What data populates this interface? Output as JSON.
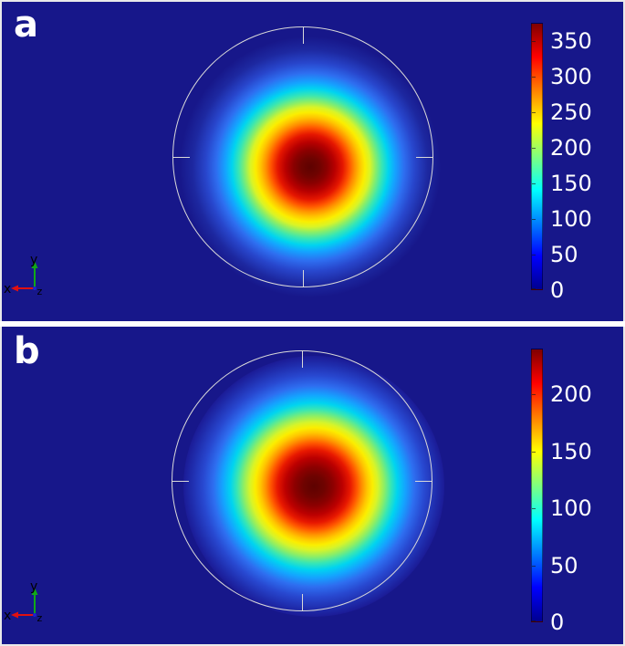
{
  "colors": {
    "background": "#17178A",
    "panel_divider": "#FFFFFF",
    "circle_outline": "#D9D9D9",
    "label_text": "#FFFFFF",
    "colorbar_tick_text": "#FFFFFF",
    "triad_x": "#E01010",
    "triad_y": "#10A818",
    "triad_z": "#2020D0",
    "triad_text": "#000000"
  },
  "triad": {
    "x_label": "x",
    "y_label": "y",
    "z_label": "z"
  },
  "jet_colormap": [
    {
      "p": 0,
      "c": "#00008F"
    },
    {
      "p": 12.5,
      "c": "#0000FF"
    },
    {
      "p": 37.5,
      "c": "#00FFFF"
    },
    {
      "p": 62.5,
      "c": "#FFFF00"
    },
    {
      "p": 87.5,
      "c": "#FF0000"
    },
    {
      "p": 100,
      "c": "#7F0000"
    }
  ],
  "panels": [
    {
      "label": "a",
      "colorbar": {
        "max": 375,
        "ticks": [
          350,
          300,
          250,
          200,
          150,
          100,
          50,
          0
        ]
      },
      "blob_stops": [
        {
          "p": 0,
          "c": "#5E0200"
        },
        {
          "p": 7,
          "c": "#6E0300"
        },
        {
          "p": 13,
          "c": "#8C0000"
        },
        {
          "p": 19,
          "c": "#B80000"
        },
        {
          "p": 25,
          "c": "#E51600"
        },
        {
          "p": 30,
          "c": "#FF5300"
        },
        {
          "p": 34,
          "c": "#FF9000"
        },
        {
          "p": 38,
          "c": "#FFC400"
        },
        {
          "p": 42,
          "c": "#FBEE00"
        },
        {
          "p": 46,
          "c": "#D8F428"
        },
        {
          "p": 50,
          "c": "#8CEE66"
        },
        {
          "p": 55,
          "c": "#38E6B4"
        },
        {
          "p": 60,
          "c": "#00D4F0"
        },
        {
          "p": 65,
          "c": "#14A4FF"
        },
        {
          "p": 72,
          "c": "#2E6EF0"
        },
        {
          "p": 80,
          "c": "#2846CC"
        },
        {
          "p": 90,
          "c": "#1D28A0"
        },
        {
          "p": 100,
          "c": "#17178A"
        }
      ]
    },
    {
      "label": "b",
      "colorbar": {
        "max": 240,
        "ticks": [
          200,
          150,
          100,
          50,
          0
        ]
      },
      "blob_stops": [
        {
          "p": 0,
          "c": "#5E0200"
        },
        {
          "p": 8,
          "c": "#6E0300"
        },
        {
          "p": 15,
          "c": "#8E0000"
        },
        {
          "p": 22,
          "c": "#BC0000"
        },
        {
          "p": 28,
          "c": "#E81800"
        },
        {
          "p": 33,
          "c": "#FF5500"
        },
        {
          "p": 37,
          "c": "#FF9200"
        },
        {
          "p": 41,
          "c": "#FFC600"
        },
        {
          "p": 45,
          "c": "#FBEE00"
        },
        {
          "p": 49,
          "c": "#D8F428"
        },
        {
          "p": 54,
          "c": "#8CEE66"
        },
        {
          "p": 59,
          "c": "#38E6B4"
        },
        {
          "p": 64,
          "c": "#00D4F0"
        },
        {
          "p": 70,
          "c": "#14A4FF"
        },
        {
          "p": 77,
          "c": "#2E6EF0"
        },
        {
          "p": 85,
          "c": "#2848D0"
        },
        {
          "p": 94,
          "c": "#1F2CAC"
        },
        {
          "p": 100,
          "c": "#1B1B96"
        }
      ]
    }
  ],
  "chart_data": [
    {
      "type": "heatmap",
      "panel": "a",
      "plot": "2D field on circular domain with radially symmetric hot spot near center",
      "colormap": "jet",
      "domain_shape": "circle with N/S/E/W edge tick marks",
      "colorbar": {
        "position": "right",
        "ticks": [
          0,
          50,
          100,
          150,
          200,
          250,
          300,
          350
        ],
        "range": [
          0,
          375
        ]
      },
      "min_value": 0,
      "peak_value_approx": 375,
      "legend": "none",
      "grid": "off"
    },
    {
      "type": "heatmap",
      "panel": "b",
      "plot": "2D field on circular domain with broader radially symmetric hot spot near center",
      "colormap": "jet",
      "domain_shape": "circle with N/S/E/W edge tick marks",
      "colorbar": {
        "position": "right",
        "ticks": [
          0,
          50,
          100,
          150,
          200
        ],
        "range": [
          0,
          240
        ]
      },
      "min_value": 0,
      "peak_value_approx": 240,
      "legend": "none",
      "grid": "off"
    }
  ]
}
